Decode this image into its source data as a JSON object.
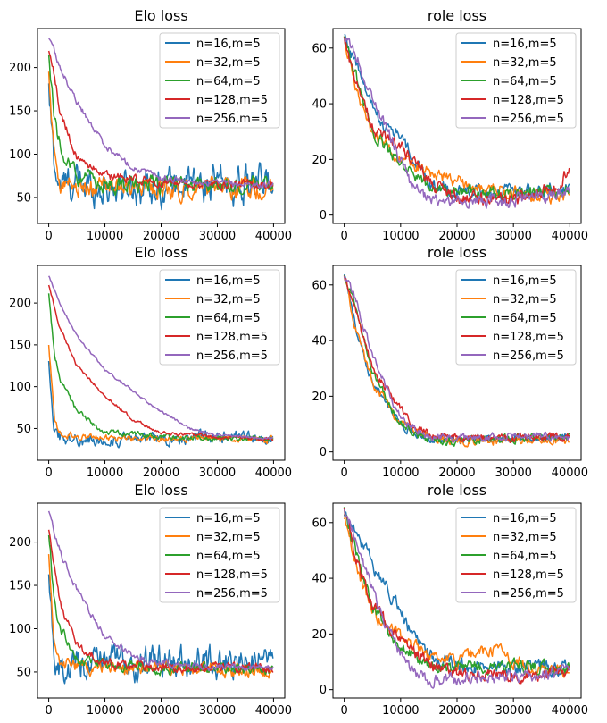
{
  "figure": {
    "series_names": [
      "n=16,m=5",
      "n=32,m=5",
      "n=64,m=5",
      "n=128,m=5",
      "n=256,m=5"
    ],
    "series_colors": [
      "#1f77b4",
      "#ff7f0e",
      "#2ca02c",
      "#d62728",
      "#9467bd"
    ]
  },
  "chart_data": [
    {
      "type": "line",
      "title": "Elo loss",
      "xlim": [
        -2000,
        42000
      ],
      "ylim": [
        20,
        245
      ],
      "xticks": [
        0,
        10000,
        20000,
        30000,
        40000
      ],
      "yticks": [
        50,
        100,
        150,
        200
      ],
      "legend": "top-right",
      "series": [
        {
          "name": "n=16,m=5",
          "x": [
            0,
            1000,
            2000,
            5000,
            10000,
            20000,
            30000,
            40000
          ],
          "values": [
            170,
            85,
            65,
            65,
            62,
            65,
            65,
            65
          ],
          "noise": 16
        },
        {
          "name": "n=32,m=5",
          "x": [
            0,
            1000,
            2000,
            5000,
            10000,
            20000,
            30000,
            40000
          ],
          "values": [
            190,
            95,
            70,
            62,
            60,
            60,
            60,
            58
          ],
          "noise": 9
        },
        {
          "name": "n=64,m=5",
          "x": [
            0,
            1000,
            2000,
            5000,
            10000,
            20000,
            30000,
            40000
          ],
          "values": [
            212,
            140,
            110,
            75,
            65,
            65,
            65,
            65
          ],
          "noise": 7
        },
        {
          "name": "n=128,m=5",
          "x": [
            0,
            1000,
            2000,
            5000,
            10000,
            20000,
            30000,
            40000
          ],
          "values": [
            218,
            190,
            150,
            95,
            75,
            68,
            65,
            65
          ],
          "noise": 4
        },
        {
          "name": "n=256,m=5",
          "x": [
            0,
            2000,
            5000,
            10000,
            15000,
            20000,
            30000,
            40000
          ],
          "values": [
            233,
            200,
            160,
            110,
            85,
            72,
            66,
            64
          ],
          "noise": 3
        }
      ]
    },
    {
      "type": "line",
      "title": "role loss",
      "xlim": [
        -2000,
        42000
      ],
      "ylim": [
        -3,
        67
      ],
      "xticks": [
        0,
        10000,
        20000,
        30000,
        40000
      ],
      "yticks": [
        0,
        20,
        40,
        60
      ],
      "legend": "top-right",
      "series": [
        {
          "name": "n=16,m=5",
          "x": [
            0,
            2000,
            5000,
            8000,
            10000,
            12000,
            15000,
            20000,
            30000,
            40000
          ],
          "values": [
            64,
            55,
            38,
            30,
            29,
            20,
            12,
            8,
            8,
            10
          ],
          "noise": 2
        },
        {
          "name": "n=32,m=5",
          "x": [
            0,
            2000,
            5000,
            10000,
            15000,
            20000,
            30000,
            40000
          ],
          "values": [
            63,
            45,
            30,
            20,
            15,
            12,
            8,
            6
          ],
          "noise": 1.8
        },
        {
          "name": "n=64,m=5",
          "x": [
            0,
            2000,
            5000,
            10000,
            15000,
            20000,
            30000,
            40000
          ],
          "values": [
            64,
            50,
            30,
            18,
            10,
            8,
            8,
            8
          ],
          "noise": 1.8
        },
        {
          "name": "n=128,m=5",
          "x": [
            0,
            2000,
            5000,
            10000,
            15000,
            20000,
            30000,
            38000,
            40000
          ],
          "values": [
            64,
            48,
            32,
            25,
            12,
            6,
            5,
            10,
            18
          ],
          "noise": 1.8
        },
        {
          "name": "n=256,m=5",
          "x": [
            0,
            2000,
            5000,
            10000,
            12000,
            15000,
            20000,
            30000,
            40000
          ],
          "values": [
            64,
            58,
            42,
            20,
            10,
            5,
            5,
            5,
            9
          ],
          "noise": 1.8
        }
      ]
    },
    {
      "type": "line",
      "title": "Elo loss",
      "xlim": [
        -2000,
        42000
      ],
      "ylim": [
        12,
        245
      ],
      "xticks": [
        0,
        10000,
        20000,
        30000,
        40000
      ],
      "yticks": [
        50,
        100,
        150,
        200
      ],
      "legend": "top-right",
      "series": [
        {
          "name": "n=16,m=5",
          "x": [
            0,
            1000,
            2000,
            5000,
            10000,
            20000,
            30000,
            40000
          ],
          "values": [
            130,
            50,
            40,
            36,
            36,
            38,
            40,
            38
          ],
          "noise": 6
        },
        {
          "name": "n=32,m=5",
          "x": [
            0,
            1000,
            2000,
            5000,
            10000,
            20000,
            30000,
            40000
          ],
          "values": [
            150,
            60,
            45,
            40,
            38,
            38,
            38,
            36
          ],
          "noise": 3
        },
        {
          "name": "n=64,m=5",
          "x": [
            0,
            1000,
            2000,
            5000,
            10000,
            20000,
            30000,
            40000
          ],
          "values": [
            212,
            140,
            110,
            70,
            45,
            40,
            38,
            37
          ],
          "noise": 2.5
        },
        {
          "name": "n=128,m=5",
          "x": [
            0,
            2000,
            5000,
            10000,
            15000,
            20000,
            30000,
            40000
          ],
          "values": [
            222,
            170,
            125,
            90,
            60,
            45,
            40,
            37
          ],
          "noise": 1.5
        },
        {
          "name": "n=256,m=5",
          "x": [
            0,
            2000,
            5000,
            10000,
            15000,
            20000,
            25000,
            30000,
            40000
          ],
          "values": [
            233,
            200,
            160,
            120,
            95,
            70,
            50,
            42,
            38
          ],
          "noise": 1.2
        }
      ]
    },
    {
      "type": "line",
      "title": "role loss",
      "xlim": [
        -2000,
        42000
      ],
      "ylim": [
        -3,
        67
      ],
      "xticks": [
        0,
        10000,
        20000,
        30000,
        40000
      ],
      "yticks": [
        0,
        20,
        40,
        60
      ],
      "legend": "top-right",
      "series": [
        {
          "name": "n=16,m=5",
          "x": [
            0,
            2000,
            5000,
            10000,
            15000,
            20000,
            30000,
            40000
          ],
          "values": [
            64,
            45,
            25,
            10,
            4,
            4,
            5,
            5
          ],
          "noise": 1.2
        },
        {
          "name": "n=32,m=5",
          "x": [
            0,
            2000,
            5000,
            10000,
            15000,
            20000,
            30000,
            40000
          ],
          "values": [
            63,
            45,
            25,
            10,
            5,
            4,
            4,
            4
          ],
          "noise": 1.2
        },
        {
          "name": "n=64,m=5",
          "x": [
            0,
            2000,
            5000,
            10000,
            15000,
            20000,
            30000,
            40000
          ],
          "values": [
            64,
            52,
            28,
            10,
            4,
            4,
            5,
            5
          ],
          "noise": 1.2
        },
        {
          "name": "n=128,m=5",
          "x": [
            0,
            2000,
            5000,
            10000,
            12000,
            15000,
            20000,
            30000,
            40000
          ],
          "values": [
            64,
            50,
            30,
            15,
            10,
            6,
            5,
            5,
            6
          ],
          "noise": 1.2
        },
        {
          "name": "n=256,m=5",
          "x": [
            0,
            2000,
            5000,
            10000,
            15000,
            20000,
            30000,
            40000
          ],
          "values": [
            64,
            55,
            35,
            12,
            5,
            5,
            6,
            5
          ],
          "noise": 1.2
        }
      ]
    },
    {
      "type": "line",
      "title": "Elo loss",
      "xlim": [
        -2000,
        42000
      ],
      "ylim": [
        20,
        245
      ],
      "xticks": [
        0,
        10000,
        20000,
        30000,
        40000
      ],
      "yticks": [
        50,
        100,
        150,
        200
      ],
      "legend": "top-right",
      "series": [
        {
          "name": "n=16,m=5",
          "x": [
            0,
            1000,
            2000,
            5000,
            10000,
            20000,
            30000,
            40000
          ],
          "values": [
            170,
            65,
            55,
            58,
            60,
            62,
            60,
            62
          ],
          "noise": 14
        },
        {
          "name": "n=32,m=5",
          "x": [
            0,
            1000,
            2000,
            5000,
            10000,
            20000,
            30000,
            40000
          ],
          "values": [
            190,
            80,
            60,
            55,
            55,
            55,
            52,
            50
          ],
          "noise": 6
        },
        {
          "name": "n=64,m=5",
          "x": [
            0,
            1000,
            2000,
            5000,
            10000,
            20000,
            30000,
            40000
          ],
          "values": [
            212,
            130,
            100,
            65,
            60,
            55,
            55,
            52
          ],
          "noise": 5
        },
        {
          "name": "n=128,m=5",
          "x": [
            0,
            1000,
            2000,
            5000,
            10000,
            20000,
            30000,
            40000
          ],
          "values": [
            218,
            170,
            130,
            80,
            60,
            55,
            55,
            55
          ],
          "noise": 4
        },
        {
          "name": "n=256,m=5",
          "x": [
            0,
            2000,
            5000,
            10000,
            15000,
            20000,
            30000,
            40000
          ],
          "values": [
            233,
            190,
            145,
            90,
            68,
            60,
            55,
            55
          ],
          "noise": 3
        }
      ]
    },
    {
      "type": "line",
      "title": "role loss",
      "xlim": [
        -2000,
        42000
      ],
      "ylim": [
        -3,
        67
      ],
      "xticks": [
        0,
        10000,
        20000,
        30000,
        40000
      ],
      "yticks": [
        0,
        20,
        40,
        60
      ],
      "legend": "top-right",
      "series": [
        {
          "name": "n=16,m=5",
          "x": [
            0,
            2000,
            5000,
            8000,
            10000,
            12000,
            15000,
            20000,
            30000,
            40000
          ],
          "values": [
            64,
            58,
            45,
            35,
            28,
            20,
            12,
            8,
            8,
            8
          ],
          "noise": 2
        },
        {
          "name": "n=32,m=5",
          "x": [
            0,
            2000,
            5000,
            10000,
            15000,
            20000,
            27000,
            30000,
            40000
          ],
          "values": [
            63,
            45,
            28,
            18,
            12,
            10,
            15,
            10,
            6
          ],
          "noise": 1.8
        },
        {
          "name": "n=64,m=5",
          "x": [
            0,
            2000,
            5000,
            10000,
            15000,
            20000,
            30000,
            40000
          ],
          "values": [
            64,
            50,
            30,
            15,
            8,
            8,
            8,
            8
          ],
          "noise": 1.8
        },
        {
          "name": "n=128,m=5",
          "x": [
            0,
            2000,
            5000,
            10000,
            15000,
            20000,
            30000,
            40000
          ],
          "values": [
            64,
            48,
            30,
            17,
            10,
            6,
            5,
            6
          ],
          "noise": 1.8
        },
        {
          "name": "n=256,m=5",
          "x": [
            0,
            2000,
            5000,
            10000,
            12000,
            15000,
            20000,
            30000,
            40000
          ],
          "values": [
            64,
            55,
            35,
            12,
            6,
            3,
            4,
            5,
            6
          ],
          "noise": 1.8
        }
      ]
    }
  ]
}
